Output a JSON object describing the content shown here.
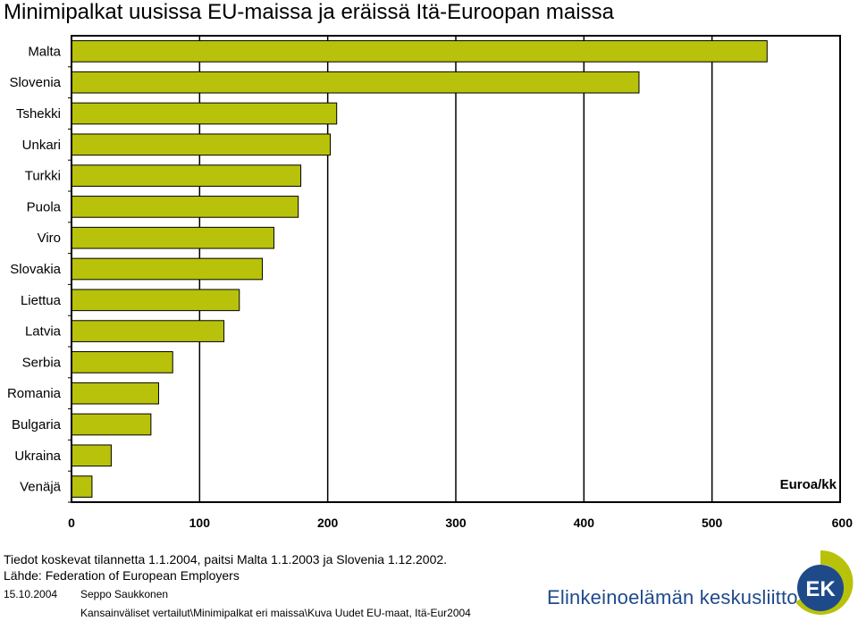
{
  "title": "Minimipalkat uusissa EU-maissa ja eräissä Itä-Euroopan maissa",
  "chart_data": {
    "type": "bar",
    "orientation": "horizontal",
    "categories": [
      "Malta",
      "Slovenia",
      "Tshekki",
      "Unkari",
      "Turkki",
      "Puola",
      "Viro",
      "Slovakia",
      "Liettua",
      "Latvia",
      "Serbia",
      "Romania",
      "Bulgaria",
      "Ukraina",
      "Venäjä"
    ],
    "values": [
      543,
      443,
      207,
      202,
      179,
      177,
      158,
      149,
      131,
      119,
      79,
      68,
      62,
      31,
      16
    ],
    "xlim": [
      0,
      600
    ],
    "xticks": [
      "0",
      "100",
      "200",
      "300",
      "400",
      "500",
      "600"
    ],
    "unit_label": "Euroa/kk",
    "grid": "vertical",
    "bar_color": "#b8c20a"
  },
  "notes": {
    "line1": "Tiedot koskevat tilannetta 1.1.2004, paitsi Malta 1.1.2003 ja Slovenia 1.12.2002.",
    "line2": "Lähde: Federation of European Employers"
  },
  "footer": {
    "date": "15.10.2004",
    "author": "Seppo Saukkonen",
    "path": "Kansainväliset vertailut\\Minimipalkat eri maissa\\Kuva Uudet EU-maat, Itä-Eur2004",
    "org_name": "Elinkeinoelämän keskusliitto",
    "logo_text": "EK"
  }
}
